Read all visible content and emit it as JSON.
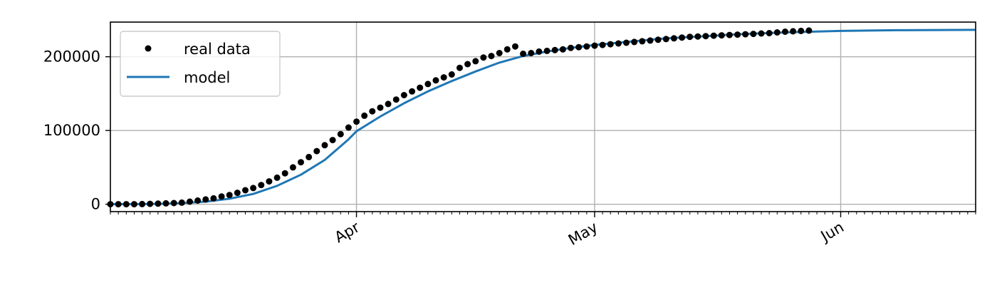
{
  "chart_data": {
    "type": "line",
    "title": "",
    "xlabel": "",
    "ylabel": "",
    "x_axis": {
      "kind": "date",
      "min": "2020-03-01",
      "max": "2020-06-18"
    },
    "ylim": [
      -10000,
      247000
    ],
    "y_ticks": [
      {
        "value": 0,
        "label": "0"
      },
      {
        "value": 100000,
        "label": "100000"
      },
      {
        "value": 200000,
        "label": "200000"
      }
    ],
    "x_ticks_major": [
      {
        "value": "2020-04-01",
        "label": "Apr"
      },
      {
        "value": "2020-05-01",
        "label": "May"
      },
      {
        "value": "2020-06-01",
        "label": "Jun"
      }
    ],
    "x_ticks_minor": "daily",
    "grid": true,
    "legend": {
      "position": "top-left",
      "entries": [
        "real data",
        "model"
      ]
    },
    "colors": {
      "real_data": "#000000",
      "model": "#1f77b4",
      "grid": "#b0b0b0"
    },
    "series": [
      {
        "name": "real data",
        "style": "points",
        "x": [
          "2020-03-01",
          "2020-03-02",
          "2020-03-03",
          "2020-03-04",
          "2020-03-05",
          "2020-03-06",
          "2020-03-07",
          "2020-03-08",
          "2020-03-09",
          "2020-03-10",
          "2020-03-11",
          "2020-03-12",
          "2020-03-13",
          "2020-03-14",
          "2020-03-15",
          "2020-03-16",
          "2020-03-17",
          "2020-03-18",
          "2020-03-19",
          "2020-03-20",
          "2020-03-21",
          "2020-03-22",
          "2020-03-23",
          "2020-03-24",
          "2020-03-25",
          "2020-03-26",
          "2020-03-27",
          "2020-03-28",
          "2020-03-29",
          "2020-03-30",
          "2020-03-31",
          "2020-04-01",
          "2020-04-02",
          "2020-04-03",
          "2020-04-04",
          "2020-04-05",
          "2020-04-06",
          "2020-04-07",
          "2020-04-08",
          "2020-04-09",
          "2020-04-10",
          "2020-04-11",
          "2020-04-12",
          "2020-04-13",
          "2020-04-14",
          "2020-04-15",
          "2020-04-16",
          "2020-04-17",
          "2020-04-18",
          "2020-04-19",
          "2020-04-20",
          "2020-04-21",
          "2020-04-22",
          "2020-04-23",
          "2020-04-24",
          "2020-04-25",
          "2020-04-26",
          "2020-04-27",
          "2020-04-28",
          "2020-04-29",
          "2020-04-30",
          "2020-05-01",
          "2020-05-02",
          "2020-05-03",
          "2020-05-04",
          "2020-05-05",
          "2020-05-06",
          "2020-05-07",
          "2020-05-08",
          "2020-05-09",
          "2020-05-10",
          "2020-05-11",
          "2020-05-12",
          "2020-05-13",
          "2020-05-14",
          "2020-05-15",
          "2020-05-16",
          "2020-05-17",
          "2020-05-18",
          "2020-05-19",
          "2020-05-20",
          "2020-05-21",
          "2020-05-22",
          "2020-05-23",
          "2020-05-24",
          "2020-05-25",
          "2020-05-26",
          "2020-05-27",
          "2020-05-28"
        ],
        "y": [
          0,
          0,
          0,
          0,
          200,
          500,
          800,
          1200,
          1600,
          2200,
          3500,
          5000,
          6500,
          8000,
          10500,
          12500,
          15500,
          19000,
          22000,
          26000,
          31000,
          36000,
          42000,
          50000,
          57000,
          64000,
          72000,
          80000,
          87000,
          95000,
          104000,
          112000,
          120000,
          126000,
          131000,
          136000,
          142000,
          148000,
          153000,
          158000,
          163000,
          168000,
          172000,
          176000,
          185000,
          190000,
          194000,
          199000,
          201000,
          205000,
          210000,
          214000,
          204000,
          205000,
          207000,
          208000,
          209000,
          210000,
          212000,
          213000,
          214000,
          215000,
          216000,
          217000,
          218000,
          219000,
          220000,
          221000,
          222000,
          223000,
          224000,
          225000,
          226000,
          227000,
          227500,
          228000,
          228500,
          229000,
          229500,
          230000,
          230500,
          231000,
          231500,
          232000,
          233000,
          234000,
          234500,
          235000,
          235500
        ]
      },
      {
        "name": "model",
        "style": "line",
        "x": [
          "2020-03-01",
          "2020-03-04",
          "2020-03-07",
          "2020-03-10",
          "2020-03-13",
          "2020-03-16",
          "2020-03-19",
          "2020-03-22",
          "2020-03-25",
          "2020-03-28",
          "2020-03-31",
          "2020-04-01",
          "2020-04-04",
          "2020-04-07",
          "2020-04-10",
          "2020-04-13",
          "2020-04-16",
          "2020-04-19",
          "2020-04-22",
          "2020-04-25",
          "2020-04-28",
          "2020-05-01",
          "2020-05-05",
          "2020-05-10",
          "2020-05-15",
          "2020-05-20",
          "2020-05-25",
          "2020-06-01",
          "2020-06-08",
          "2020-06-18"
        ],
        "y": [
          0,
          100,
          500,
          1500,
          3500,
          7500,
          14000,
          25000,
          40000,
          60000,
          88000,
          99000,
          119000,
          137000,
          153000,
          167000,
          180000,
          192000,
          201000,
          207000,
          212000,
          216000,
          220000,
          225000,
          228000,
          231000,
          233000,
          235000,
          236000,
          236500
        ]
      }
    ]
  }
}
